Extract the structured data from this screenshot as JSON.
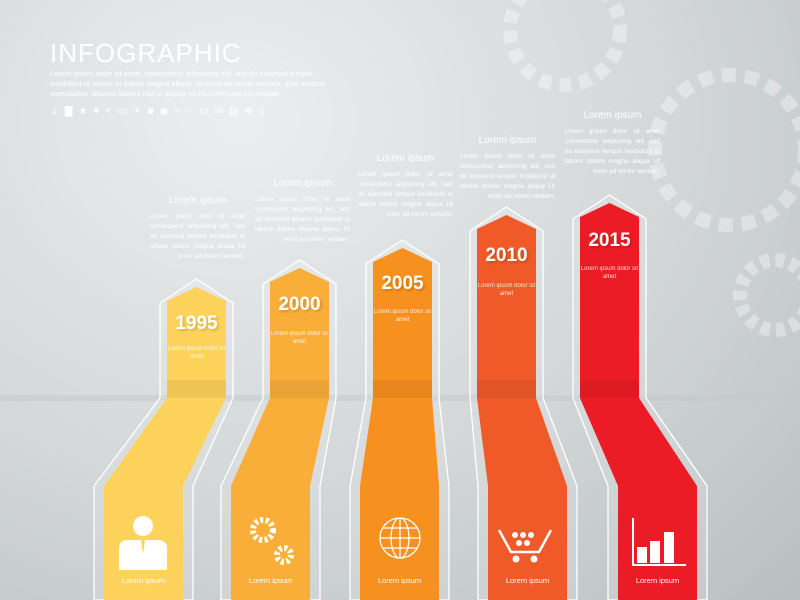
{
  "header": {
    "title": "INFOGRAPHIC",
    "intro": "Lorem ipsum dolor sit amet, consectetur adipiscing elit, sed do eiusmod tempor incididunt ut labore et dolore magna aliqua. Ut enim ad minim veniam, quis nostrud exercitation ullamco laboris nisi ut aliquip ex ea commodo consequat.",
    "icons": [
      "antenna-icon",
      "briefcase-icon",
      "star-icon",
      "heart-icon",
      "share-icon",
      "monitor-icon",
      "sun-icon",
      "chat-icon",
      "eye-icon",
      "lightning-icon",
      "location-pin-icon",
      "display-icon",
      "mail-icon",
      "book-icon",
      "gear-icon",
      "mobile-icon"
    ]
  },
  "steps": [
    {
      "year": "1995",
      "heading": "Lorem ipsum",
      "text": "Lorem ipsum dolor sit amet consectetur adipiscing elit, sed do eiusmod tempor incididunt ut labore dolore magna aliqua Ut enim ad minim veniam,",
      "sub": "Lorem ipsum dolor sit amet",
      "label": "Lorem ipsum",
      "icon": "businessman-icon",
      "color": "#fdd35c"
    },
    {
      "year": "2000",
      "heading": "Lorem ipsum",
      "text": "Lorem ipsum dolor sit amet consectetur adipiscing elit, sed do eiusmod tempor incididunt ut labore dolore magna aliqua Ut enim ad minim veniam,",
      "sub": "Lorem ipsum dolor sit amet",
      "label": "Lorem ipsum",
      "icon": "gears-icon",
      "color": "#f9ae3a"
    },
    {
      "year": "2005",
      "heading": "Lorem ipsum",
      "text": "Lorem ipsum dolor sit amet consectetur adipiscing elit, sed do eiusmod tempor incididunt ut labore dolore magna aliqua Ut enim ad minim veniam,",
      "sub": "Lorem ipsum dolor sit amet",
      "label": "Lorem ipsum",
      "icon": "globe-icon",
      "color": "#f6901f"
    },
    {
      "year": "2010",
      "heading": "Lorem ipsum",
      "text": "Lorem ipsum dolor sit amet consectetur adipiscing elit, sed do eiusmod tempor incididunt ut labore dolore magna aliqua Ut enim ad minim veniam,",
      "sub": "Lorem ipsum dolor sit amet",
      "label": "Lorem ipsum",
      "icon": "shopping-cart-icon",
      "color": "#f05a28"
    },
    {
      "year": "2015",
      "heading": "Lorem ipsum",
      "text": "Lorem ipsum dolor sit amet consectetur adipiscing elit, sed do eiusmod tempor incididunt ut labore dolore magna aliqua Ut enim ad minim veniam,",
      "sub": "Lorem ipsum dolor sit amet",
      "label": "Lorem ipsum",
      "icon": "bar-chart-icon",
      "color": "#ec1c26"
    }
  ]
}
